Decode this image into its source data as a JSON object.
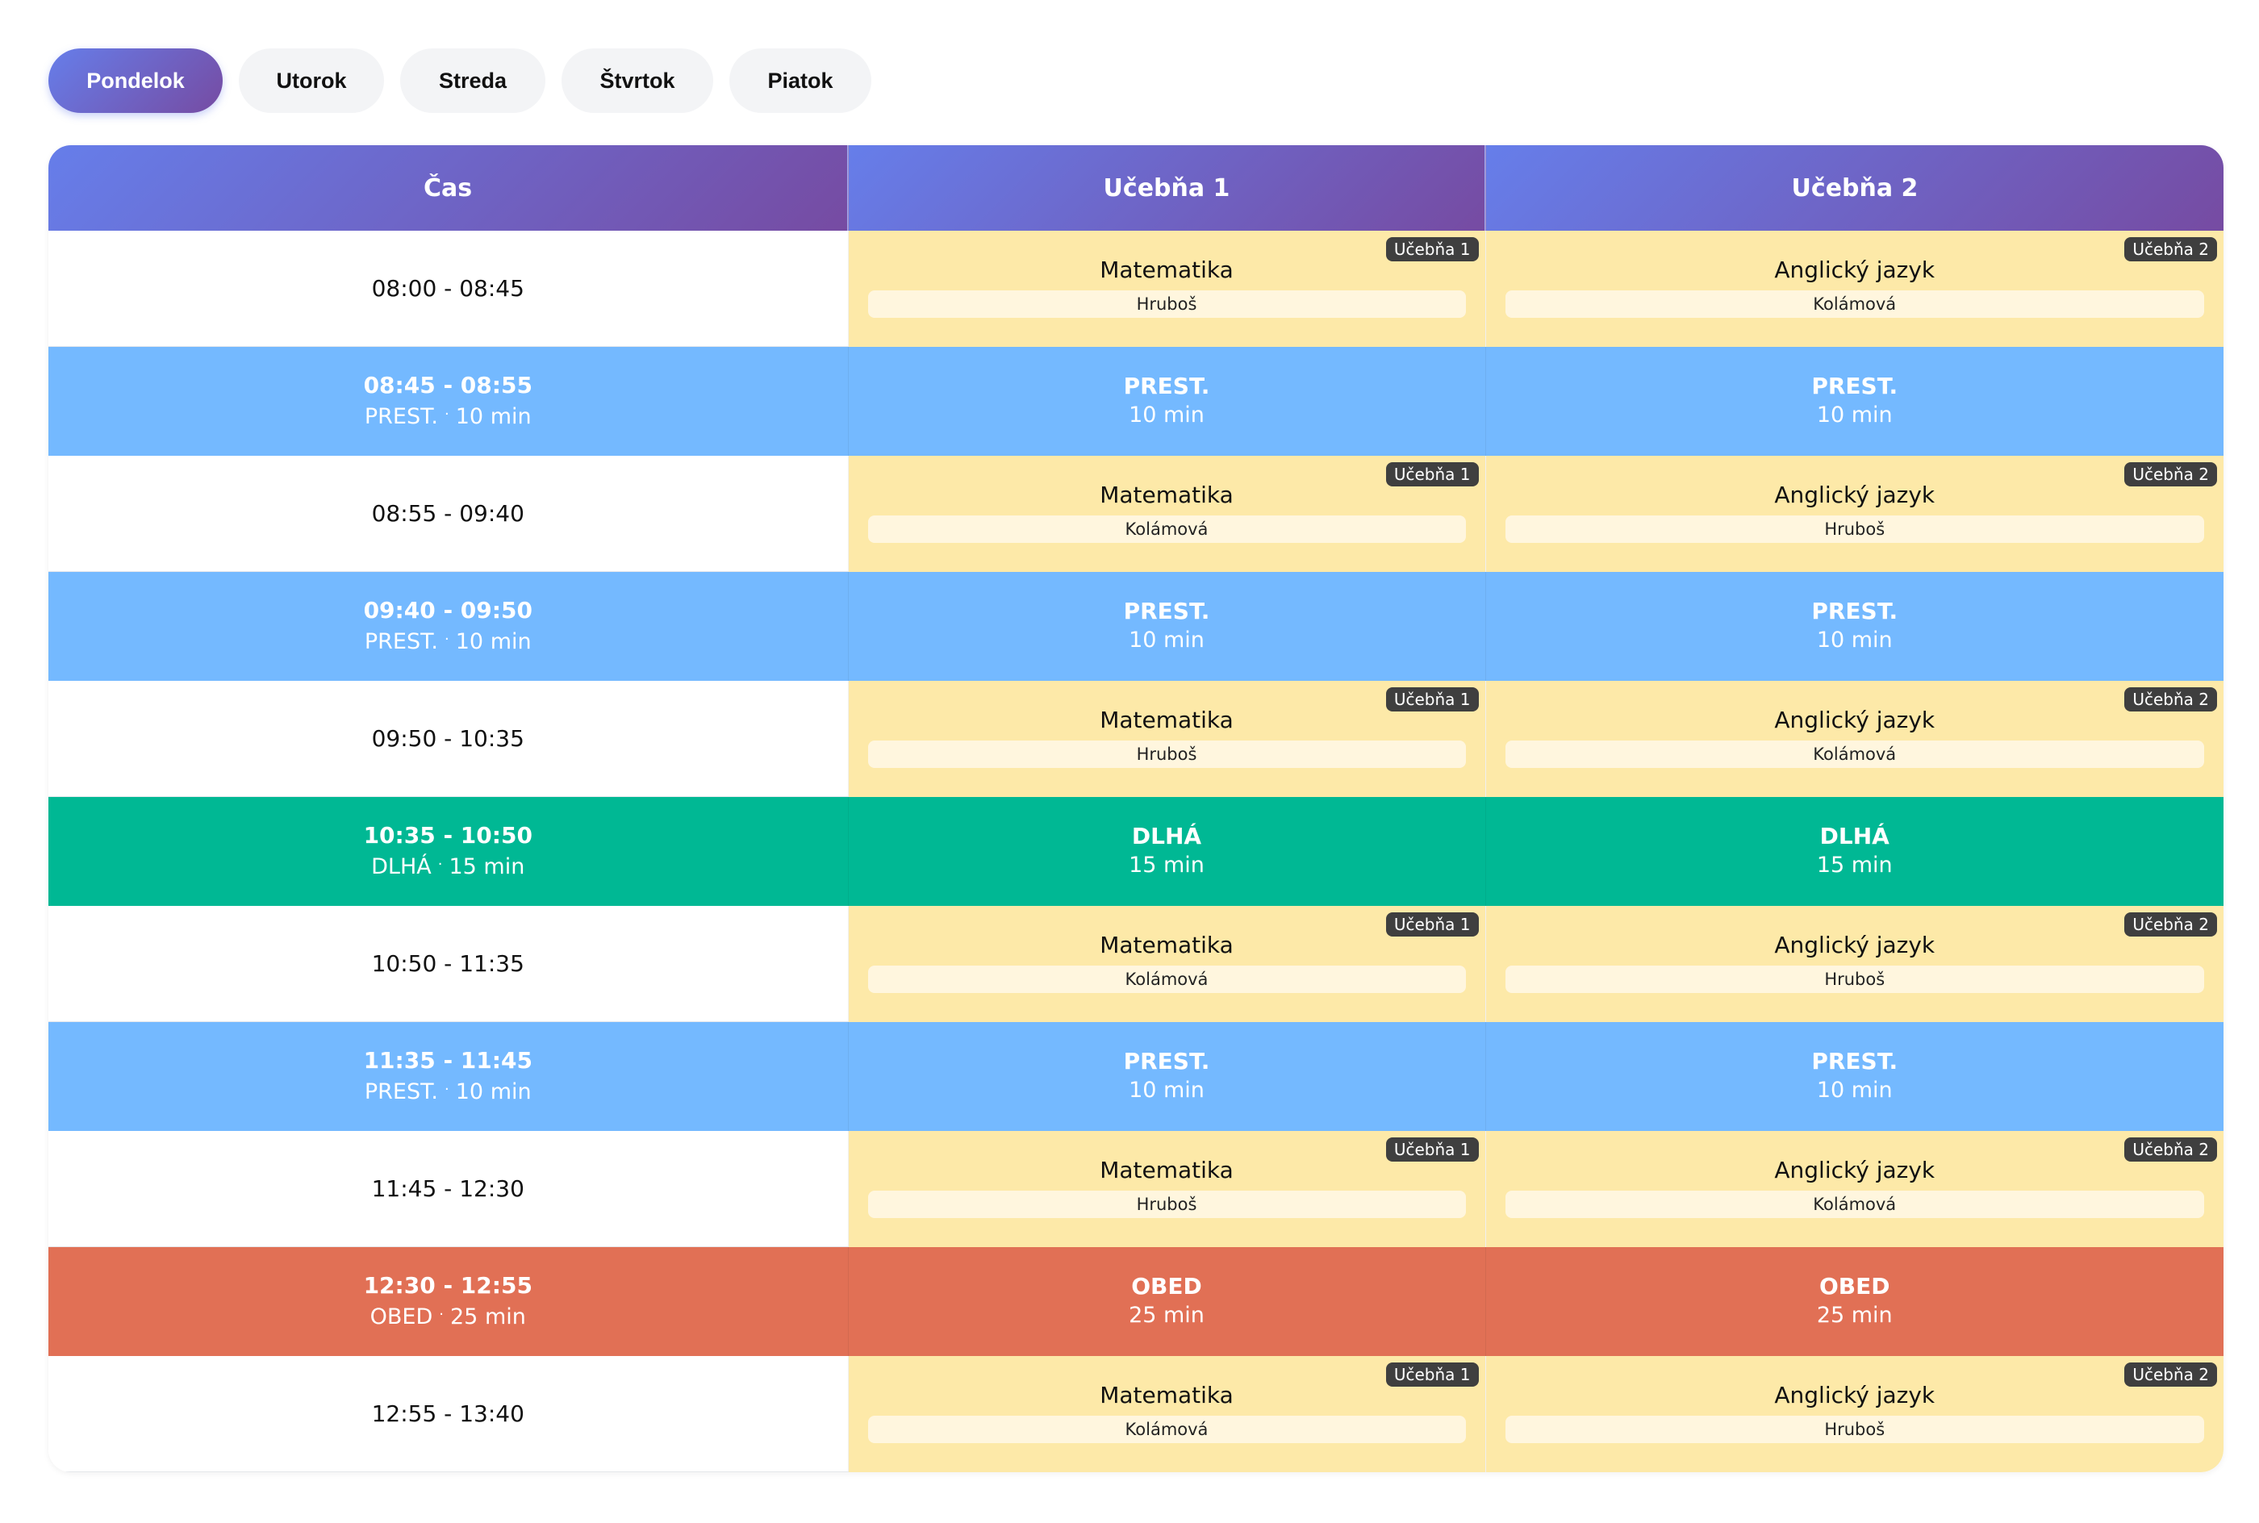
{
  "tabs": [
    {
      "label": "Pondelok",
      "active": true
    },
    {
      "label": "Utorok",
      "active": false
    },
    {
      "label": "Streda",
      "active": false
    },
    {
      "label": "Štvrtok",
      "active": false
    },
    {
      "label": "Piatok",
      "active": false
    }
  ],
  "table": {
    "headers": {
      "time": "Čas",
      "room1": "Učebňa 1",
      "room2": "Učebňa 2"
    },
    "rows": [
      {
        "type": "lesson",
        "time": "08:00 - 08:45",
        "r1": {
          "badge": "Učebňa 1",
          "subject": "Matematika",
          "teacher": "Hruboš"
        },
        "r2": {
          "badge": "Učebňa 2",
          "subject": "Anglický jazyk",
          "teacher": "Kolámová"
        }
      },
      {
        "type": "prest",
        "time": "08:45 - 08:55",
        "label": "PREST.",
        "dot": "·",
        "duration": "10 min"
      },
      {
        "type": "lesson",
        "time": "08:55 - 09:40",
        "r1": {
          "badge": "Učebňa 1",
          "subject": "Matematika",
          "teacher": "Kolámová"
        },
        "r2": {
          "badge": "Učebňa 2",
          "subject": "Anglický jazyk",
          "teacher": "Hruboš"
        }
      },
      {
        "type": "prest",
        "time": "09:40 - 09:50",
        "label": "PREST.",
        "dot": "·",
        "duration": "10 min"
      },
      {
        "type": "lesson",
        "time": "09:50 - 10:35",
        "r1": {
          "badge": "Učebňa 1",
          "subject": "Matematika",
          "teacher": "Hruboš"
        },
        "r2": {
          "badge": "Učebňa 2",
          "subject": "Anglický jazyk",
          "teacher": "Kolámová"
        }
      },
      {
        "type": "dlha",
        "time": "10:35 - 10:50",
        "label": "DLHÁ",
        "dot": "·",
        "duration": "15 min"
      },
      {
        "type": "lesson",
        "time": "10:50 - 11:35",
        "r1": {
          "badge": "Učebňa 1",
          "subject": "Matematika",
          "teacher": "Kolámová"
        },
        "r2": {
          "badge": "Učebňa 2",
          "subject": "Anglický jazyk",
          "teacher": "Hruboš"
        }
      },
      {
        "type": "prest",
        "time": "11:35 - 11:45",
        "label": "PREST.",
        "dot": "·",
        "duration": "10 min"
      },
      {
        "type": "lesson",
        "time": "11:45 - 12:30",
        "r1": {
          "badge": "Učebňa 1",
          "subject": "Matematika",
          "teacher": "Hruboš"
        },
        "r2": {
          "badge": "Učebňa 2",
          "subject": "Anglický jazyk",
          "teacher": "Kolámová"
        }
      },
      {
        "type": "obed",
        "time": "12:30 - 12:55",
        "label": "OBED",
        "dot": "·",
        "duration": "25 min"
      },
      {
        "type": "lesson",
        "time": "12:55 - 13:40",
        "r1": {
          "badge": "Učebňa 1",
          "subject": "Matematika",
          "teacher": "Kolámová"
        },
        "r2": {
          "badge": "Učebňa 2",
          "subject": "Anglický jazyk",
          "teacher": "Hruboš"
        }
      }
    ]
  },
  "colors": {
    "header_gradient_start": "#667eea",
    "header_gradient_end": "#764ba2",
    "lesson_cell": "#fde9a8",
    "short_break": "#74b9ff",
    "long_break": "#00b894",
    "lunch": "#e17055"
  }
}
